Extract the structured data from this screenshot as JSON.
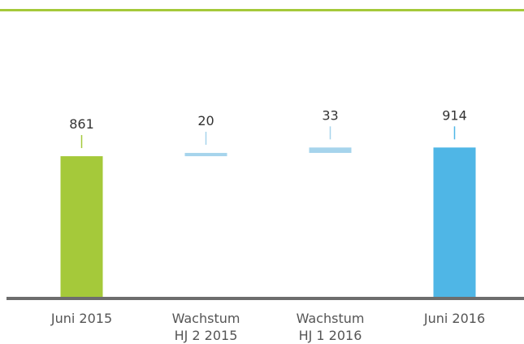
{
  "chart_data": {
    "type": "waterfall",
    "categories": [
      "Juni 2015",
      "Wachstum\nHJ 2 2015",
      "Wachstum\nHJ 1 2016",
      "Juni 2016"
    ],
    "values": [
      861,
      20,
      33,
      914
    ],
    "measure": [
      "absolute",
      "relative",
      "relative",
      "total"
    ],
    "colors": [
      "#a5c93a",
      "#a6d4ec",
      "#a6d4ec",
      "#4fb6e6"
    ],
    "ylim": [
      0,
      1000
    ]
  }
}
